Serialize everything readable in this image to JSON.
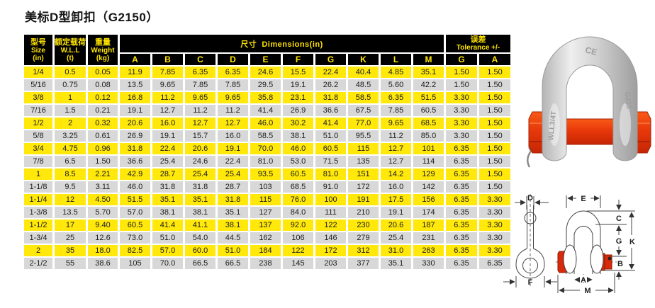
{
  "title": "美标D型卸扣（G2150）",
  "table": {
    "header": {
      "col1_cn": "型号",
      "col1_en": "Size",
      "col1_unit": "(in)",
      "col2_cn": "额定载荷",
      "col2_en": "W.L.L",
      "col2_unit": "(t)",
      "col3_cn": "重量",
      "col3_en": "Weight",
      "col3_unit": "(kg)",
      "dims_cn": "尺寸",
      "dims_en": "Dimensions(in)",
      "tol_cn": "误差",
      "tol_en": "Tolerance +/-",
      "dim_cols": [
        "A",
        "B",
        "C",
        "D",
        "E",
        "F",
        "G",
        "K",
        "L",
        "M"
      ],
      "tol_cols": [
        "G",
        "A"
      ]
    },
    "rows": [
      [
        "1/4",
        "0.5",
        "0.05",
        "11.9",
        "7.85",
        "6.35",
        "6.35",
        "24.6",
        "15.5",
        "22.4",
        "40.4",
        "4.85",
        "35.1",
        "1.50",
        "1.50"
      ],
      [
        "5/16",
        "0.75",
        "0.08",
        "13.5",
        "9.65",
        "7.85",
        "7.85",
        "29.5",
        "19.1",
        "26.2",
        "48.5",
        "5.60",
        "42.2",
        "1.50",
        "1.50"
      ],
      [
        "3/8",
        "1",
        "0.12",
        "16.8",
        "11.2",
        "9.65",
        "9.65",
        "35.8",
        "23.1",
        "31.8",
        "58.5",
        "6.35",
        "51.5",
        "3.30",
        "1.50"
      ],
      [
        "7/16",
        "1.5",
        "0.21",
        "19.1",
        "12.7",
        "11.2",
        "11.2",
        "41.4",
        "26.9",
        "36.6",
        "67.5",
        "7.85",
        "60.5",
        "3.30",
        "1.50"
      ],
      [
        "1/2",
        "2",
        "0.32",
        "20.6",
        "16.0",
        "12.7",
        "12.7",
        "46.0",
        "30.2",
        "41.4",
        "77.0",
        "9.65",
        "68.5",
        "3.30",
        "1.50"
      ],
      [
        "5/8",
        "3.25",
        "0.61",
        "26.9",
        "19.1",
        "15.7",
        "16.0",
        "58.5",
        "38.1",
        "51.0",
        "95.5",
        "11.2",
        "85.0",
        "3.30",
        "1.50"
      ],
      [
        "3/4",
        "4.75",
        "0.96",
        "31.8",
        "22.4",
        "20.6",
        "19.1",
        "70.0",
        "46.0",
        "60.5",
        "115",
        "12.7",
        "101",
        "6.35",
        "1.50"
      ],
      [
        "7/8",
        "6.5",
        "1.50",
        "36.6",
        "25.4",
        "24.6",
        "22.4",
        "81.0",
        "53.0",
        "71.5",
        "135",
        "12.7",
        "114",
        "6.35",
        "1.50"
      ],
      [
        "1",
        "8.5",
        "2.21",
        "42.9",
        "28.7",
        "25.4",
        "25.4",
        "93.5",
        "60.5",
        "81.0",
        "151",
        "14.2",
        "129",
        "6.35",
        "1.50"
      ],
      [
        "1-1/8",
        "9.5",
        "3.11",
        "46.0",
        "31.8",
        "31.8",
        "28.7",
        "103",
        "68.5",
        "91.0",
        "172",
        "16.0",
        "142",
        "6.35",
        "1.50"
      ],
      [
        "1-1/4",
        "12",
        "4.50",
        "51.5",
        "35.1",
        "35.1",
        "31.8",
        "115",
        "76.0",
        "100",
        "191",
        "17.5",
        "156",
        "6.35",
        "3.30"
      ],
      [
        "1-3/8",
        "13.5",
        "5.70",
        "57.0",
        "38.1",
        "38.1",
        "35.1",
        "127",
        "84.0",
        "111",
        "210",
        "19.1",
        "174",
        "6.35",
        "3.30"
      ],
      [
        "1-1/2",
        "17",
        "9.40",
        "60.5",
        "41.4",
        "41.1",
        "38.1",
        "137",
        "92.0",
        "122",
        "230",
        "20.6",
        "187",
        "6.35",
        "3.30"
      ],
      [
        "1-3/4",
        "25",
        "12.6",
        "73.0",
        "51.0",
        "54.0",
        "44.5",
        "162",
        "106",
        "146",
        "279",
        "25.4",
        "231",
        "6.35",
        "3.30"
      ],
      [
        "2",
        "35",
        "18.0",
        "82.5",
        "57.0",
        "60.0",
        "51.0",
        "184",
        "122",
        "172",
        "312",
        "31.0",
        "263",
        "6.35",
        "3.30"
      ],
      [
        "2-1/2",
        "55",
        "38.6",
        "105",
        "70.0",
        "66.5",
        "66.5",
        "238",
        "145",
        "203",
        "377",
        "35.1",
        "330",
        "6.35",
        "6.35"
      ]
    ]
  },
  "photo": {
    "mark_ce": "CE",
    "mark_wll": "WLL3/4T",
    "mark_model": "G215"
  },
  "diagram": {
    "d": "D",
    "f": "F",
    "e": "E",
    "c": "C",
    "g": "G",
    "k": "K",
    "b": "B",
    "a": "A",
    "m": "M"
  },
  "colors": {
    "row_yellow": "#ffe80a",
    "row_gray": "#d8d8d8",
    "header_bg": "#000000",
    "header_text": "#ffe400",
    "pin_red": "#e8380a"
  }
}
